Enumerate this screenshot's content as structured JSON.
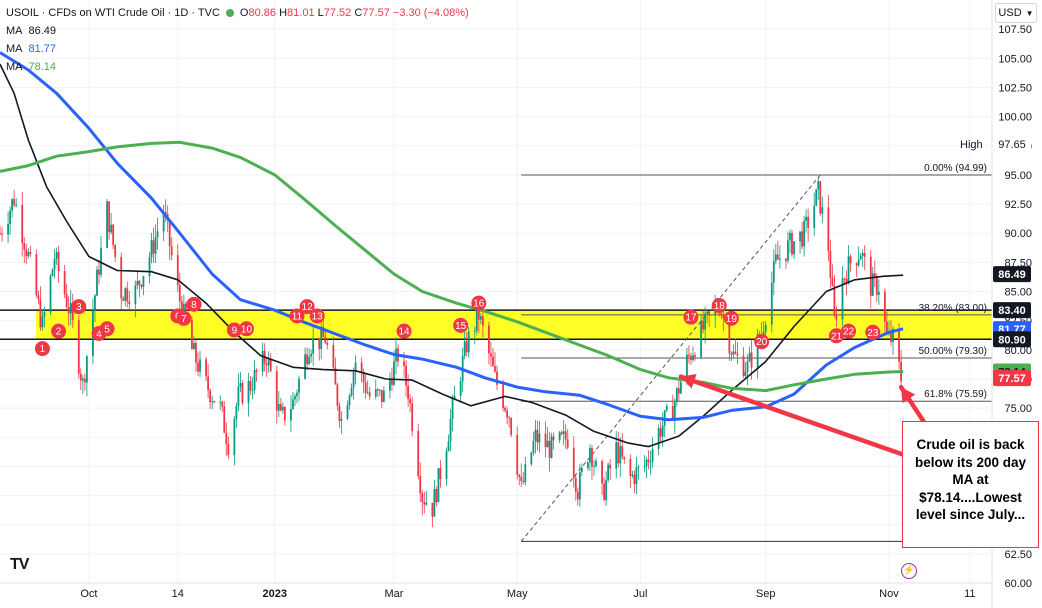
{
  "header": {
    "symbol": "USOIL · CFDs on WTI Crude Oil · 1D · TVC",
    "ohlc": {
      "o_label": "O",
      "o": "80.86",
      "h_label": "H",
      "h": "81.01",
      "l_label": "L",
      "l": "77.52",
      "c_label": "C",
      "c": "77.57",
      "change": "−3.30 (−4.08%)"
    },
    "ma": [
      {
        "label": "MA",
        "value": "86.49",
        "color": "#131722"
      },
      {
        "label": "MA",
        "value": "81.77",
        "color": "#2962ff"
      },
      {
        "label": "MA",
        "value": "78.14",
        "color": "#4caf50"
      }
    ]
  },
  "currency_button": {
    "label": "USD",
    "icon": "chevron-down-icon"
  },
  "annotation": {
    "text": "Crude oil is back below its 200 day MA at $78.14....Lowest level since July..."
  },
  "logo": {
    "text": "TV"
  },
  "chart_data": {
    "type": "candlestick",
    "ylim": [
      60,
      110
    ],
    "yticks": [
      "60.00",
      "62.50",
      "65.00",
      "67.50",
      "70.00",
      "72.50",
      "75.00",
      "77.50",
      "80.00",
      "82.50",
      "85.00",
      "87.50",
      "90.00",
      "92.50",
      "95.00",
      "97.50",
      "100.00",
      "102.50",
      "105.00",
      "107.50"
    ],
    "xticks": [
      {
        "label": "Oct",
        "date": "2022-10-01"
      },
      {
        "label": "14",
        "date": "2022-11-14"
      },
      {
        "label": "2023",
        "date": "2023-01-01"
      },
      {
        "label": "Mar",
        "date": "2023-03-01"
      },
      {
        "label": "May",
        "date": "2023-05-01"
      },
      {
        "label": "Jul",
        "date": "2023-07-01"
      },
      {
        "label": "Sep",
        "date": "2023-09-01"
      },
      {
        "label": "Nov",
        "date": "2023-11-01"
      },
      {
        "label": "11",
        "date": "2023-12-11"
      }
    ],
    "x_range": [
      "2022-08-18",
      "2023-12-22"
    ],
    "zone": {
      "low": 80.9,
      "high": 83.4,
      "color": "#ffff00"
    },
    "zone_touches": [
      {
        "label": "1",
        "date": "2022-09-08",
        "price": 80.1
      },
      {
        "label": "2",
        "date": "2022-09-16",
        "price": 81.6
      },
      {
        "label": "3",
        "date": "2022-09-26",
        "price": 83.7
      },
      {
        "label": "4",
        "date": "2022-10-06",
        "price": 81.4
      },
      {
        "label": "5",
        "date": "2022-10-10",
        "price": 81.8
      },
      {
        "label": "6",
        "date": "2022-11-14",
        "price": 82.9
      },
      {
        "label": "7",
        "date": "2022-11-17",
        "price": 82.7
      },
      {
        "label": "8",
        "date": "2022-11-22",
        "price": 83.9
      },
      {
        "label": "9",
        "date": "2022-12-12",
        "price": 81.7
      },
      {
        "label": "10",
        "date": "2022-12-18",
        "price": 81.8
      },
      {
        "label": "11",
        "date": "2023-01-12",
        "price": 82.9
      },
      {
        "label": "12",
        "date": "2023-01-17",
        "price": 83.7
      },
      {
        "label": "13",
        "date": "2023-01-22",
        "price": 82.9
      },
      {
        "label": "14",
        "date": "2023-03-06",
        "price": 81.6
      },
      {
        "label": "15",
        "date": "2023-04-03",
        "price": 82.1
      },
      {
        "label": "16",
        "date": "2023-04-12",
        "price": 84.0
      },
      {
        "label": "17",
        "date": "2023-07-26",
        "price": 82.8
      },
      {
        "label": "18",
        "date": "2023-08-09",
        "price": 83.8
      },
      {
        "label": "19",
        "date": "2023-08-15",
        "price": 82.7
      },
      {
        "label": "20",
        "date": "2023-08-30",
        "price": 80.7
      },
      {
        "label": "21",
        "date": "2023-10-06",
        "price": 81.2
      },
      {
        "label": "22",
        "date": "2023-10-12",
        "price": 81.6
      },
      {
        "label": "23",
        "date": "2023-10-24",
        "price": 81.5
      }
    ],
    "fibonacci": {
      "low": 63.57,
      "high": 94.99,
      "start_date": "2023-05-03",
      "end_date": "2023-09-28",
      "levels": [
        {
          "label": "0.00% (94.99)",
          "price": 94.99
        },
        {
          "label": "38.20% (83.00)",
          "price": 83.0
        },
        {
          "label": "50.00% (79.30)",
          "price": 79.3
        },
        {
          "label": "61.8% (75.59)",
          "price": 75.59
        }
      ]
    },
    "price_labels": [
      {
        "text": "97.65",
        "price": 97.65,
        "bg": "#ffffff",
        "fg": "#131722",
        "tag": "High"
      },
      {
        "text": "86.49",
        "price": 86.49,
        "bg": "#131722",
        "fg": "#ffffff"
      },
      {
        "text": "83.40",
        "price": 83.4,
        "bg": "#131722",
        "fg": "#ffffff"
      },
      {
        "text": "81.77",
        "price": 81.77,
        "bg": "#2962ff",
        "fg": "#ffffff"
      },
      {
        "text": "80.90",
        "price": 80.9,
        "bg": "#131722",
        "fg": "#ffffff"
      },
      {
        "text": "78.14",
        "price": 78.14,
        "bg": "#4caf50",
        "fg": "#131722"
      },
      {
        "text": "77.57",
        "price": 77.57,
        "bg": "#f23645",
        "fg": "#ffffff"
      }
    ],
    "series": [
      {
        "name": "MA",
        "value": "86.49",
        "color": "#131722",
        "points": [
          [
            "2022-08-18",
            104.5
          ],
          [
            "2022-08-25",
            102
          ],
          [
            "2022-09-01",
            98
          ],
          [
            "2022-09-10",
            94
          ],
          [
            "2022-09-20",
            91
          ],
          [
            "2022-10-01",
            88
          ],
          [
            "2022-10-15",
            86.8
          ],
          [
            "2022-11-01",
            86.7
          ],
          [
            "2022-11-14",
            86
          ],
          [
            "2022-11-28",
            84
          ],
          [
            "2022-12-12",
            81.5
          ],
          [
            "2022-12-25",
            79.5
          ],
          [
            "2023-01-10",
            78.5
          ],
          [
            "2023-01-25",
            78.3
          ],
          [
            "2023-02-10",
            78.2
          ],
          [
            "2023-02-25",
            77.5
          ],
          [
            "2023-03-10",
            77.4
          ],
          [
            "2023-03-25",
            76.2
          ],
          [
            "2023-04-08",
            75.2
          ],
          [
            "2023-04-25",
            76
          ],
          [
            "2023-05-08",
            75.5
          ],
          [
            "2023-05-25",
            74.4
          ],
          [
            "2023-06-08",
            73
          ],
          [
            "2023-06-25",
            72
          ],
          [
            "2023-07-05",
            71.7
          ],
          [
            "2023-07-20",
            72.6
          ],
          [
            "2023-08-01",
            74.3
          ],
          [
            "2023-08-15",
            76.5
          ],
          [
            "2023-09-01",
            79
          ],
          [
            "2023-09-15",
            82
          ],
          [
            "2023-10-01",
            85
          ],
          [
            "2023-10-15",
            86
          ],
          [
            "2023-10-29",
            86.3
          ],
          [
            "2023-11-08",
            86.4
          ]
        ]
      },
      {
        "name": "MA",
        "value": "81.77",
        "color": "#2962ff",
        "points": [
          [
            "2022-08-18",
            105.5
          ],
          [
            "2022-09-01",
            104
          ],
          [
            "2022-09-15",
            102
          ],
          [
            "2022-10-01",
            99
          ],
          [
            "2022-10-15",
            96
          ],
          [
            "2022-11-01",
            93
          ],
          [
            "2022-11-15",
            90
          ],
          [
            "2022-12-01",
            86.5
          ],
          [
            "2022-12-15",
            84.3
          ],
          [
            "2023-01-01",
            83.4
          ],
          [
            "2023-01-15",
            82.4
          ],
          [
            "2023-02-01",
            81.3
          ],
          [
            "2023-02-15",
            80.4
          ],
          [
            "2023-03-01",
            79.6
          ],
          [
            "2023-03-15",
            79.2
          ],
          [
            "2023-04-01",
            78.5
          ],
          [
            "2023-04-15",
            77.6
          ],
          [
            "2023-05-01",
            76.8
          ],
          [
            "2023-05-15",
            76.4
          ],
          [
            "2023-06-01",
            76.1
          ],
          [
            "2023-06-15",
            75.3
          ],
          [
            "2023-07-01",
            74.3
          ],
          [
            "2023-07-15",
            74.0
          ],
          [
            "2023-08-01",
            74.2
          ],
          [
            "2023-08-15",
            74.8
          ],
          [
            "2023-09-01",
            75.1
          ],
          [
            "2023-09-15",
            76.2
          ],
          [
            "2023-10-01",
            78.7
          ],
          [
            "2023-10-15",
            80.2
          ],
          [
            "2023-11-01",
            81.5
          ],
          [
            "2023-11-08",
            81.8
          ]
        ]
      },
      {
        "name": "MA",
        "value": "78.14",
        "color": "#4caf50",
        "points": [
          [
            "2022-08-18",
            95.3
          ],
          [
            "2022-09-01",
            95.8
          ],
          [
            "2022-09-15",
            96.6
          ],
          [
            "2022-10-01",
            97
          ],
          [
            "2022-10-15",
            97.4
          ],
          [
            "2022-11-01",
            97.7
          ],
          [
            "2022-11-15",
            97.8
          ],
          [
            "2022-12-01",
            97.3
          ],
          [
            "2022-12-15",
            96.5
          ],
          [
            "2023-01-01",
            95
          ],
          [
            "2023-01-15",
            93
          ],
          [
            "2023-02-01",
            90.5
          ],
          [
            "2023-02-15",
            88.5
          ],
          [
            "2023-03-01",
            86.5
          ],
          [
            "2023-03-15",
            85
          ],
          [
            "2023-04-01",
            84
          ],
          [
            "2023-04-15",
            83.3
          ],
          [
            "2023-05-01",
            82.4
          ],
          [
            "2023-05-15",
            81.5
          ],
          [
            "2023-06-01",
            80.4
          ],
          [
            "2023-06-15",
            79.5
          ],
          [
            "2023-07-01",
            78.3
          ],
          [
            "2023-07-15",
            77.6
          ],
          [
            "2023-08-01",
            77.2
          ],
          [
            "2023-08-15",
            76.7
          ],
          [
            "2023-09-01",
            76.5
          ],
          [
            "2023-09-15",
            77.0
          ],
          [
            "2023-10-01",
            77.5
          ],
          [
            "2023-10-15",
            77.9
          ],
          [
            "2023-11-01",
            78.1
          ],
          [
            "2023-11-08",
            78.14
          ]
        ]
      }
    ],
    "price_path": [
      [
        "2022-08-18",
        90
      ],
      [
        "2022-08-25",
        93
      ],
      [
        "2022-09-01",
        88
      ],
      [
        "2022-09-08",
        82
      ],
      [
        "2022-09-14",
        88
      ],
      [
        "2022-09-22",
        83
      ],
      [
        "2022-09-28",
        77
      ],
      [
        "2022-10-05",
        86
      ],
      [
        "2022-10-10",
        92
      ],
      [
        "2022-10-17",
        85
      ],
      [
        "2022-10-24",
        85
      ],
      [
        "2022-11-01",
        88.5
      ],
      [
        "2022-11-07",
        92
      ],
      [
        "2022-11-14",
        85
      ],
      [
        "2022-11-21",
        80
      ],
      [
        "2022-11-28",
        77
      ],
      [
        "2022-12-05",
        75
      ],
      [
        "2022-12-09",
        72
      ],
      [
        "2022-12-14",
        76
      ],
      [
        "2022-12-20",
        77
      ],
      [
        "2022-12-28",
        79.5
      ],
      [
        "2023-01-04",
        74
      ],
      [
        "2023-01-10",
        75.5
      ],
      [
        "2023-01-18",
        80.5
      ],
      [
        "2023-01-26",
        81
      ],
      [
        "2023-02-03",
        74
      ],
      [
        "2023-02-10",
        79
      ],
      [
        "2023-02-17",
        76
      ],
      [
        "2023-02-24",
        76
      ],
      [
        "2023-03-03",
        79.6
      ],
      [
        "2023-03-08",
        76.5
      ],
      [
        "2023-03-15",
        67.5
      ],
      [
        "2023-03-20",
        66.5
      ],
      [
        "2023-03-24",
        69.5
      ],
      [
        "2023-03-31",
        75.7
      ],
      [
        "2023-04-06",
        80.5
      ],
      [
        "2023-04-12",
        83
      ],
      [
        "2023-04-20",
        77.5
      ],
      [
        "2023-04-27",
        74.5
      ],
      [
        "2023-05-03",
        68
      ],
      [
        "2023-05-10",
        72.5
      ],
      [
        "2023-05-18",
        71.5
      ],
      [
        "2023-05-26",
        72.5
      ],
      [
        "2023-05-31",
        68
      ],
      [
        "2023-06-06",
        71.8
      ],
      [
        "2023-06-12",
        67.5
      ],
      [
        "2023-06-19",
        71.5
      ],
      [
        "2023-06-26",
        69
      ],
      [
        "2023-07-03",
        70
      ],
      [
        "2023-07-10",
        73
      ],
      [
        "2023-07-17",
        75
      ],
      [
        "2023-07-24",
        79
      ],
      [
        "2023-07-31",
        81.5
      ],
      [
        "2023-08-09",
        84
      ],
      [
        "2023-08-16",
        79.5
      ],
      [
        "2023-08-23",
        78.5
      ],
      [
        "2023-08-30",
        81.5
      ],
      [
        "2023-09-06",
        87.5
      ],
      [
        "2023-09-13",
        89
      ],
      [
        "2023-09-20",
        90
      ],
      [
        "2023-09-27",
        93.5
      ],
      [
        "2023-10-02",
        88.8
      ],
      [
        "2023-10-05",
        82.5
      ],
      [
        "2023-10-09",
        86
      ],
      [
        "2023-10-13",
        87.5
      ],
      [
        "2023-10-18",
        88.5
      ],
      [
        "2023-10-23",
        85.5
      ],
      [
        "2023-10-27",
        85.5
      ],
      [
        "2023-10-31",
        81
      ],
      [
        "2023-11-03",
        80.9
      ],
      [
        "2023-11-07",
        77.57
      ]
    ],
    "arrows": [
      {
        "from": [
          "2023-11-28",
          69.8
        ],
        "to": [
          "2023-07-21",
          77.7
        ]
      },
      {
        "from": [
          "2023-12-02",
          70.2
        ],
        "to": [
          "2023-11-07",
          76.8
        ]
      }
    ]
  }
}
